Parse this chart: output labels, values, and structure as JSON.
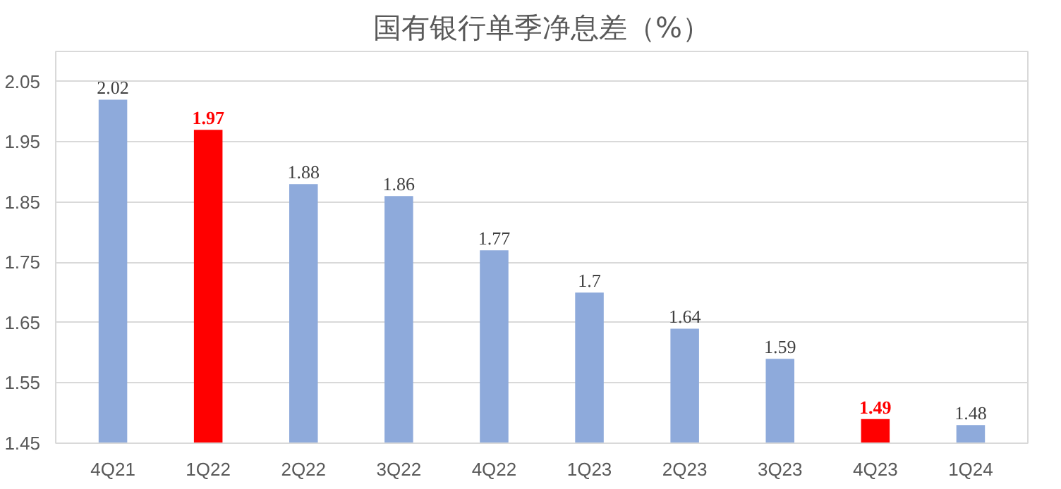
{
  "chart_data": {
    "type": "bar",
    "title": "国有银行单季净息差（%）",
    "categories": [
      "4Q21",
      "1Q22",
      "2Q22",
      "3Q22",
      "4Q22",
      "1Q23",
      "2Q23",
      "3Q23",
      "4Q23",
      "1Q24"
    ],
    "values": [
      2.02,
      1.97,
      1.88,
      1.86,
      1.77,
      1.7,
      1.64,
      1.59,
      1.49,
      1.48
    ],
    "colors": [
      "#8eaadb",
      "#ff0000",
      "#8eaadb",
      "#8eaadb",
      "#8eaadb",
      "#8eaadb",
      "#8eaadb",
      "#8eaadb",
      "#ff0000",
      "#8eaadb"
    ],
    "ylim": [
      1.45,
      2.1
    ],
    "yticks": [
      1.45,
      1.55,
      1.65,
      1.75,
      1.85,
      1.95,
      2.05
    ],
    "grid": "y",
    "data_labels": true
  }
}
